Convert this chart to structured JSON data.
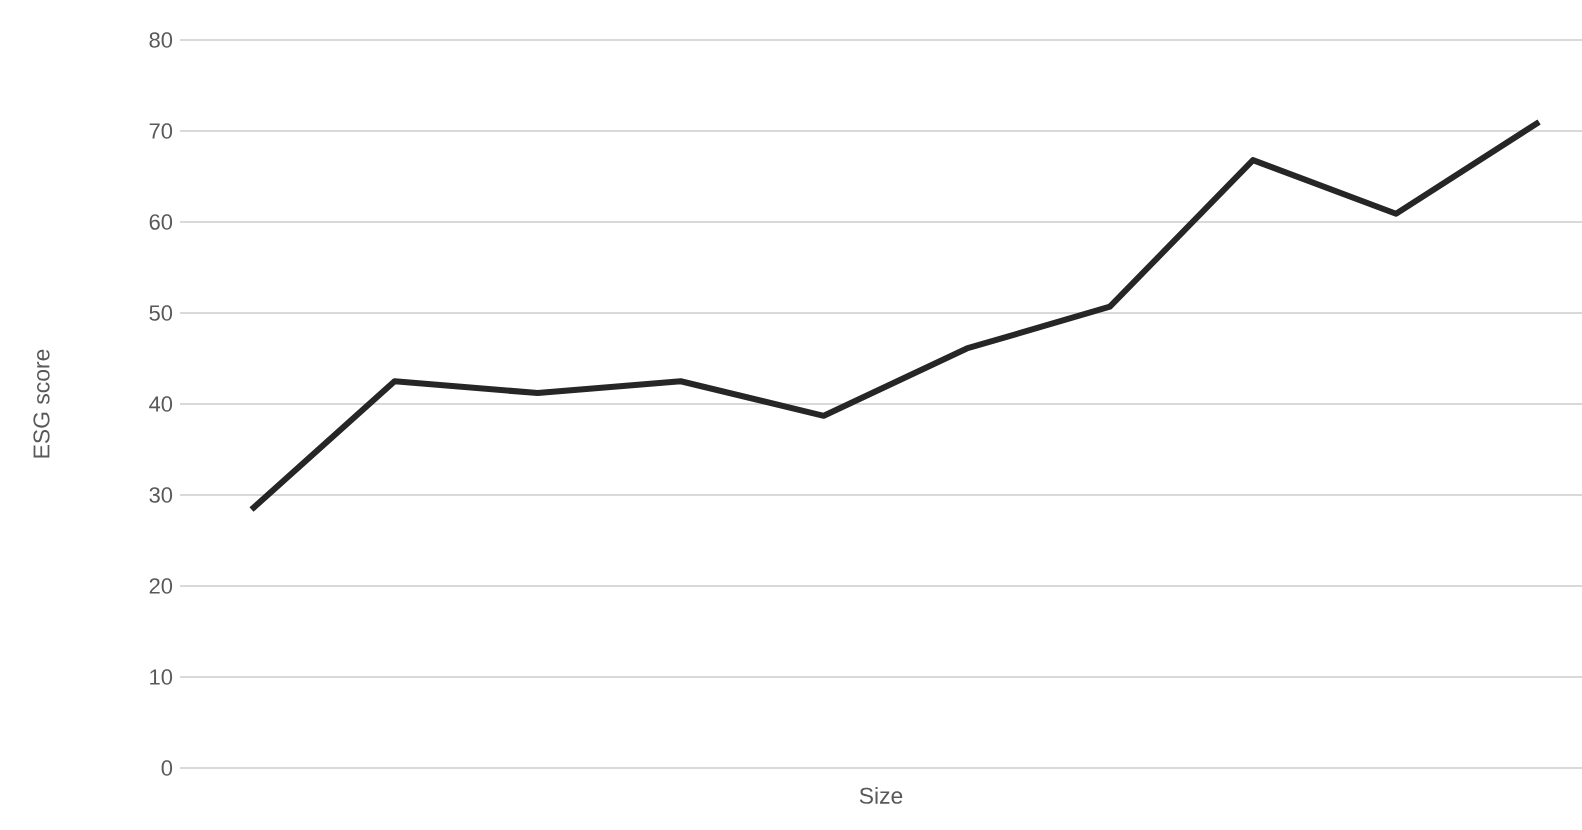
{
  "chart_data": {
    "type": "line",
    "xlabel": "Size",
    "ylabel": "ESG score",
    "categories": [
      null,
      null,
      null,
      null,
      null,
      null,
      null,
      null,
      null,
      null
    ],
    "series": [
      {
        "color": "#262626",
        "values": [
          28.4,
          42.5,
          41.2,
          42.5,
          38.7,
          46.1,
          50.7,
          66.8,
          60.9,
          71.0
        ]
      }
    ],
    "ylim": [
      0,
      80
    ],
    "yticks": [
      0,
      10,
      20,
      30,
      40,
      50,
      60,
      70,
      80
    ],
    "grid": "y",
    "legend": false,
    "marker": "none",
    "line_style": "solid"
  }
}
